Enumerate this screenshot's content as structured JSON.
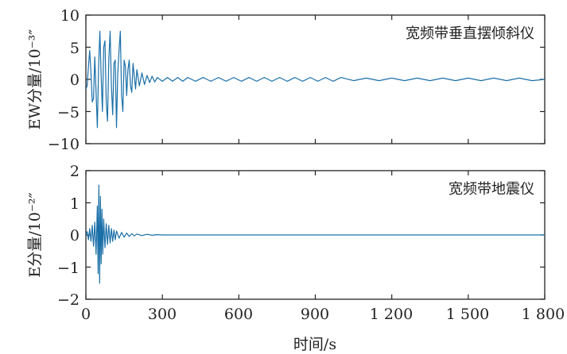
{
  "chart_data": {
    "type": "line",
    "xlabel": "时间/s",
    "x_ticks": [
      "0",
      "300",
      "600",
      "900",
      "1 200",
      "1 500",
      "1 800"
    ],
    "xlim": [
      0,
      1800
    ],
    "panels": [
      {
        "series": [
          {
            "name": "宽频带垂直摆倾斜仪",
            "color": "#1a6fa8",
            "x": [
              0,
              5,
              10,
              15,
              20,
              25,
              30,
              35,
              40,
              45,
              50,
              55,
              60,
              65,
              70,
              75,
              80,
              85,
              90,
              95,
              100,
              105,
              110,
              115,
              120,
              125,
              130,
              135,
              140,
              145,
              150,
              155,
              160,
              165,
              170,
              175,
              180,
              185,
              190,
              195,
              200,
              210,
              220,
              230,
              240,
              250,
              260,
              270,
              280,
              300,
              320,
              340,
              360,
              380,
              400,
              430,
              460,
              490,
              520,
              550,
              580,
              610,
              640,
              670,
              700,
              730,
              760,
              790,
              820,
              850,
              880,
              910,
              940,
              970,
              1000,
              1050,
              1100,
              1150,
              1200,
              1250,
              1300,
              1350,
              1400,
              1450,
              1500,
              1550,
              1600,
              1650,
              1700,
              1750,
              1800
            ],
            "y": [
              -1.5,
              -1.0,
              2.0,
              4.5,
              1.0,
              -3.5,
              -3.0,
              3.5,
              -2.0,
              -7.5,
              2.0,
              7.5,
              0.5,
              -5.0,
              5.0,
              6.0,
              -3.5,
              -6.5,
              3.0,
              7.5,
              -1.0,
              -5.5,
              2.5,
              3.0,
              -7.5,
              1.0,
              4.5,
              7.5,
              -2.5,
              -5.0,
              3.0,
              2.0,
              -2.5,
              1.5,
              3.0,
              -1.0,
              -2.0,
              2.5,
              0.5,
              -1.5,
              1.5,
              -1.0,
              1.0,
              -0.8,
              0.6,
              -0.5,
              0.5,
              -0.4,
              0.3,
              -0.3,
              0.3,
              -0.3,
              0.3,
              -0.3,
              0.3,
              -0.3,
              0.3,
              -0.3,
              0.3,
              -0.3,
              0.3,
              -0.3,
              0.3,
              -0.3,
              0.3,
              -0.3,
              0.3,
              -0.3,
              0.3,
              -0.3,
              0.3,
              -0.3,
              0.3,
              -0.3,
              0.3,
              -0.2,
              0.2,
              -0.2,
              0.2,
              -0.2,
              0.2,
              -0.2,
              0.2,
              -0.2,
              0.2,
              -0.2,
              0.2,
              -0.2,
              0.2,
              -0.2,
              0.0
            ]
          }
        ],
        "ylabel": "EW分量/10⁻³″",
        "ylim": [
          -10,
          10
        ],
        "y_ticks": [
          "10",
          "5",
          "0",
          "−5",
          "−10"
        ]
      },
      {
        "series": [
          {
            "name": "宽频带地震仪",
            "color": "#1a6fa8",
            "x": [
              0,
              5,
              10,
              15,
              20,
              25,
              30,
              35,
              40,
              45,
              48,
              51,
              54,
              57,
              60,
              63,
              66,
              70,
              75,
              80,
              85,
              90,
              95,
              100,
              105,
              110,
              115,
              120,
              130,
              140,
              150,
              160,
              170,
              180,
              190,
              200,
              220,
              240,
              260,
              280,
              300,
              400,
              600,
              900,
              1200,
              1500,
              1800
            ],
            "y": [
              0.0,
              0.1,
              -0.15,
              0.2,
              -0.2,
              0.3,
              -0.35,
              0.4,
              -0.6,
              0.9,
              -1.2,
              1.55,
              -1.5,
              1.2,
              -0.9,
              0.8,
              -0.6,
              0.5,
              -0.4,
              0.35,
              -0.3,
              0.3,
              -0.25,
              0.2,
              -0.2,
              0.15,
              -0.15,
              0.12,
              -0.1,
              0.08,
              -0.07,
              0.06,
              -0.05,
              0.04,
              -0.03,
              0.03,
              -0.02,
              0.02,
              -0.01,
              0.01,
              0.0,
              0.0,
              0.0,
              0.0,
              0.0,
              0.0,
              0.0
            ]
          }
        ],
        "ylabel": "E分量/10⁻²″",
        "ylim": [
          -2,
          2
        ],
        "y_ticks": [
          "2",
          "1",
          "0",
          "−1",
          "−2"
        ]
      }
    ]
  }
}
